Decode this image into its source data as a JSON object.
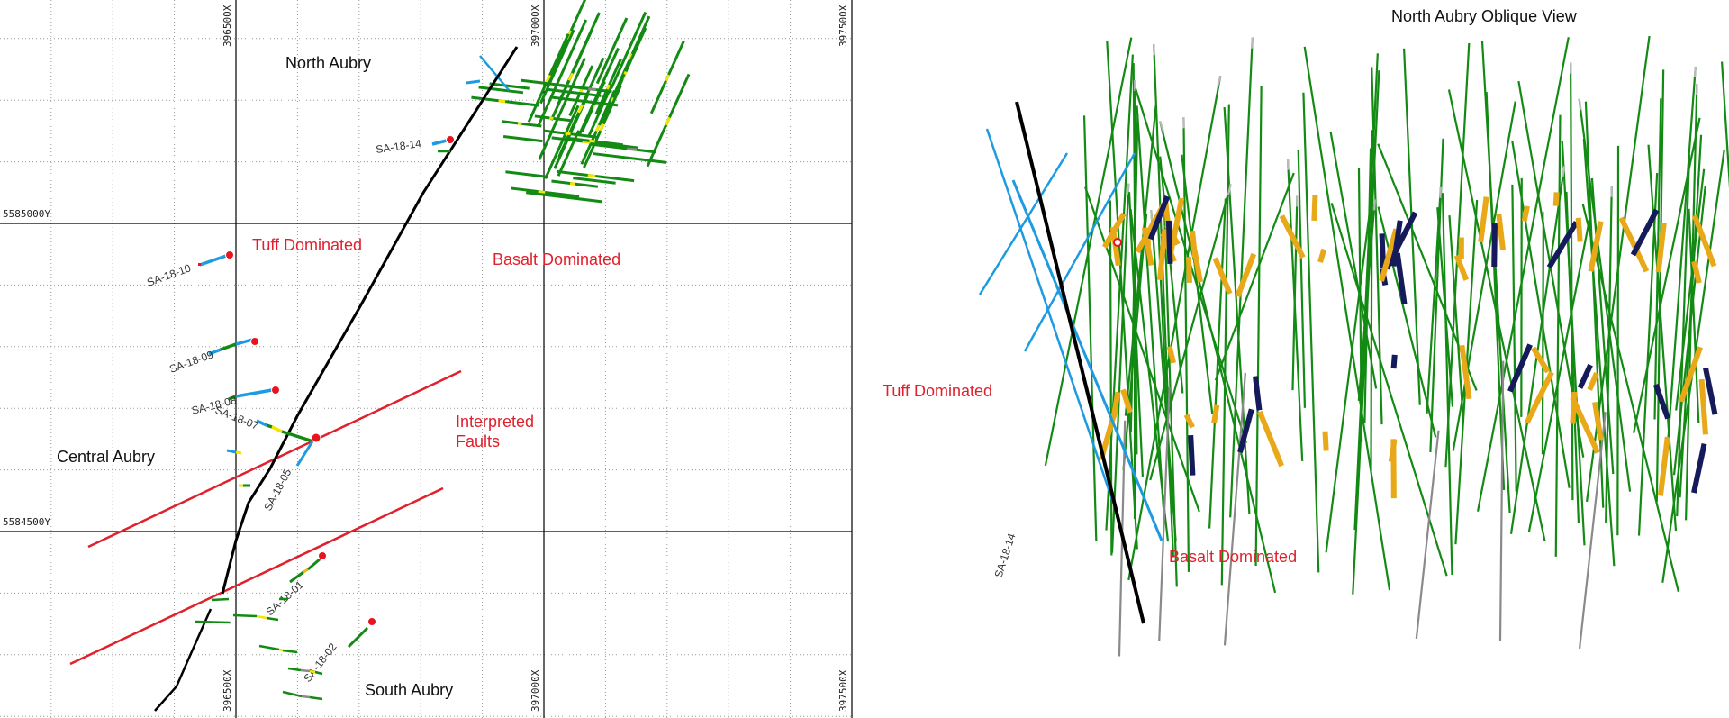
{
  "plan_map": {
    "x_grid_labels": [
      "396500X",
      "397000X",
      "397500X"
    ],
    "y_grid_labels": [
      "5585000Y",
      "5584500Y"
    ],
    "regions": {
      "north": "North Aubry",
      "central": "Central Aubry",
      "south": "South Aubry"
    },
    "domains": {
      "tuff": "Tuff Dominated",
      "basalt": "Basalt Dominated"
    },
    "faults_label_line1": "Interpreted",
    "faults_label_line2": "Faults",
    "drill_holes": [
      {
        "id": "SA-18-14"
      },
      {
        "id": "SA-18-10"
      },
      {
        "id": "SA-18-09"
      },
      {
        "id": "SA-18-08"
      },
      {
        "id": "SA-18-07"
      },
      {
        "id": "SA-18-05"
      },
      {
        "id": "SA-18-01"
      },
      {
        "id": "SA-18-02"
      }
    ]
  },
  "oblique_view": {
    "title": "North Aubry Oblique View",
    "tuff_label": "Tuff Dominated",
    "basalt_label": "Basalt Dominated",
    "hole_label": "SA-18-14"
  },
  "colors": {
    "fault": "#e0202c",
    "contact": "#000000",
    "tuff_hole": "#1e9be0",
    "basalt_hole": "#138a13",
    "mineralized": "#f2e600",
    "gray_interval": "#8a8a8a",
    "orange_intercept": "#e8a818",
    "navy_intercept": "#141a5a",
    "collar": "#e8141e"
  }
}
